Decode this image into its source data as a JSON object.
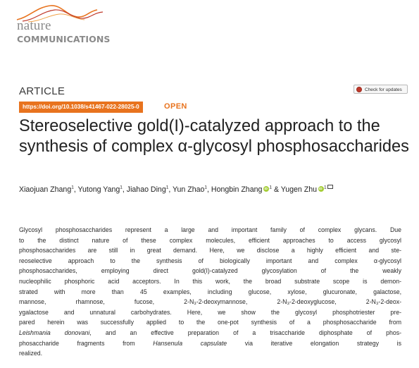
{
  "journal": {
    "logo_word1": "nature",
    "logo_word2": "COMMUNICATIONS",
    "accent_color": "#e8731e"
  },
  "article": {
    "type": "ARTICLE",
    "doi": "https://doi.org/10.1038/s41467-022-28025-0",
    "access": "OPEN",
    "check_updates": "Check for updates",
    "title": "Stereoselective gold(I)-catalyzed approach to the synthesis of complex α-glycosyl phosphosaccharides"
  },
  "authors": [
    {
      "name": "Xiaojuan Zhang",
      "aff": "1",
      "orcid": false,
      "sep": ", "
    },
    {
      "name": "Yutong Yang",
      "aff": "1",
      "orcid": false,
      "sep": ", "
    },
    {
      "name": "Jiahao Ding",
      "aff": "1",
      "orcid": false,
      "sep": ", "
    },
    {
      "name": "Yun Zhao",
      "aff": "1",
      "orcid": false,
      "sep": ", "
    },
    {
      "name": "Hongbin Zhang",
      "aff": "1",
      "orcid": true,
      "sep": " & "
    },
    {
      "name": "Yugen Zhu",
      "aff": "1",
      "orcid": true,
      "sep": ""
    }
  ],
  "abstract_lines": [
    "Glycosyl phosphosaccharides represent a large and important family of complex glycans. Due",
    "to the distinct nature of these complex molecules, efficient approaches to access glycosyl",
    "phosphosaccharides are still in great demand. Here, we disclose a highly efficient and ste-",
    "reoselective approach to the synthesis of biologically important and complex α-glycosyl",
    "phosphosaccharides, employing direct gold(I)-catalyzed glycosylation of the weakly",
    "nucleophilic phosphoric acid acceptors. In this work, the broad substrate scope is demon-",
    "strated with more than 45 examples, including glucose, xylose, glucuronate, galactose,",
    "mannose, rhamnose, fucose, 2-N₃-2-deoxymannose, 2-N₃-2-deoxyglucose, 2-N₃-2-deox-",
    "ygalactose and unnatural carbohydrates. Here, we show the glycosyl phosphotriester pre-",
    "pared herein was successfully applied to the one-pot synthesis of a phosphosaccharide from",
    "Leishmania donovani, and an effective preparation of a trisaccharide diphosphate of phos-",
    "phosaccharide fragments from Hansenula capsulate via iterative elongation strategy is",
    "realized."
  ],
  "icons": {
    "orcid": "orcid-icon",
    "mail": "mail-icon",
    "check": "crossmark-icon"
  }
}
